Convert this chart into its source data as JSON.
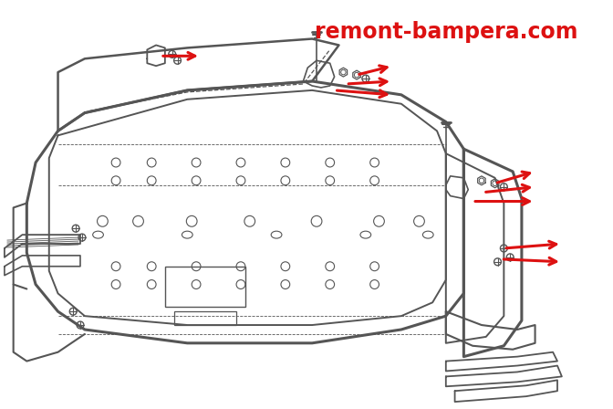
{
  "title": "remont-bampera.com",
  "title_color": "#dd1111",
  "title_fontsize": 17,
  "bg_color": "#ffffff",
  "line_color": "#555555",
  "arrow_color": "#dd1111",
  "fig_width": 6.72,
  "fig_height": 4.48,
  "dpi": 100
}
